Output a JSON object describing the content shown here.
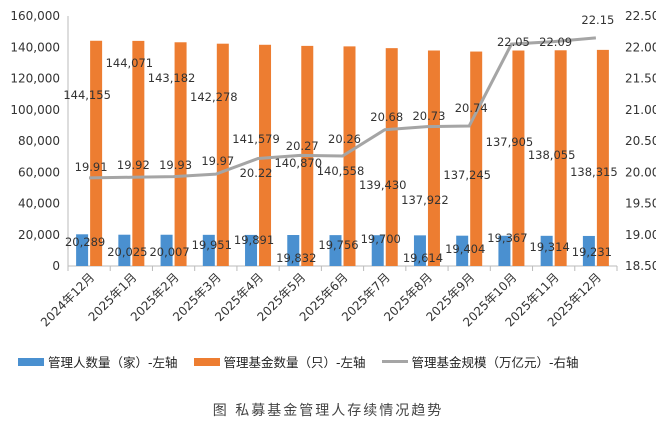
{
  "chart_data": {
    "type": "bar",
    "title": "",
    "categories": [
      "2024年12月",
      "2025年1月",
      "2025年2月",
      "2025年3月",
      "2025年4月",
      "2025年5月",
      "2025年6月",
      "2025年7月",
      "2025年8月",
      "2025年9月",
      "2025年10月",
      "2025年11月",
      "2025年12月"
    ],
    "series": [
      {
        "name": "管理人数量（家）-左轴",
        "type": "bar",
        "axis": "left",
        "color": "#4a90d0",
        "values": [
          20289,
          20025,
          20007,
          19951,
          19891,
          19832,
          19756,
          19700,
          19614,
          19404,
          19367,
          19314,
          19231
        ],
        "labels": [
          "20,289",
          "20,025",
          "20,007",
          "19,951",
          "19,891",
          "19,832",
          "19,756",
          "19,700",
          "19,614",
          "19,404",
          "19,367",
          "19,314",
          "19,231"
        ]
      },
      {
        "name": "管理基金数量（只）-左轴",
        "type": "bar",
        "axis": "left",
        "color": "#ed7d31",
        "values": [
          144155,
          144071,
          143182,
          142278,
          141579,
          140870,
          140558,
          139430,
          137922,
          137245,
          137905,
          138055,
          138315
        ],
        "labels": [
          "144,155",
          "144,071",
          "143,182",
          "142,278",
          "141,579",
          "140,870",
          "140,558",
          "139,430",
          "137,922",
          "137,245",
          "137,905",
          "138,055",
          "138,315"
        ]
      },
      {
        "name": "管理基金规模（万亿元）-右轴",
        "type": "line",
        "axis": "right",
        "color": "#a5a5a5",
        "values": [
          19.91,
          19.92,
          19.93,
          19.97,
          20.22,
          20.27,
          20.26,
          20.68,
          20.73,
          20.74,
          22.05,
          22.09,
          22.15
        ],
        "labels": [
          "19.91",
          "19.92",
          "19.93",
          "19.97",
          "20.22",
          "20.27",
          "20.26",
          "20.68",
          "20.73",
          "20.74",
          "22.05",
          "22.09",
          "22.15"
        ]
      }
    ],
    "left_axis": {
      "ylim": [
        0,
        160000
      ],
      "ticks": [
        "0",
        "20,000",
        "40,000",
        "60,000",
        "80,000",
        "100,000",
        "120,000",
        "140,000",
        "160,000"
      ]
    },
    "right_axis": {
      "ylim": [
        18.5,
        22.5
      ],
      "ticks": [
        "18.50",
        "19.00",
        "19.50",
        "20.00",
        "20.50",
        "21.00",
        "21.50",
        "22.00",
        "22.50"
      ]
    },
    "grid": false,
    "legend": "bottom"
  },
  "caption": "图   私募基金管理人存续情况趋势"
}
